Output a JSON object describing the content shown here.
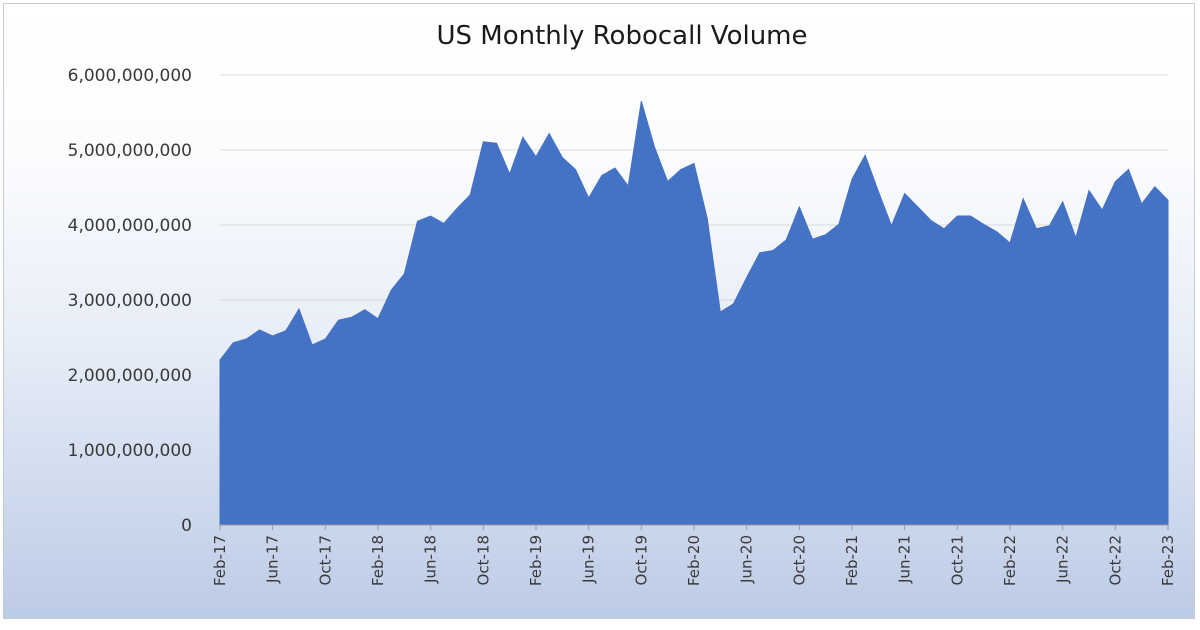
{
  "chart_data": {
    "type": "area",
    "title": "US Monthly Robocall Volume",
    "xlabel": "",
    "ylabel": "",
    "ylim": [
      0,
      6000000000
    ],
    "yticks": [
      0,
      1000000000,
      2000000000,
      3000000000,
      4000000000,
      5000000000,
      6000000000
    ],
    "ytick_labels": [
      "0",
      "1,000,000,000",
      "2,000,000,000",
      "3,000,000,000",
      "4,000,000,000",
      "5,000,000,000",
      "6,000,000,000"
    ],
    "xtick_labels": [
      "Feb-17",
      "Jun-17",
      "Oct-17",
      "Feb-18",
      "Jun-18",
      "Oct-18",
      "Feb-19",
      "Jun-19",
      "Oct-19",
      "Feb-20",
      "Jun-20",
      "Oct-20",
      "Feb-21",
      "Jun-21",
      "Oct-21",
      "Feb-22",
      "Jun-22",
      "Oct-22",
      "Feb-23"
    ],
    "tick_every_n_months": 4,
    "grid": true,
    "legend": "none",
    "color": "#4472C4",
    "start_month": "Feb-17",
    "values": [
      2200000000,
      2430000000,
      2480000000,
      2600000000,
      2520000000,
      2590000000,
      2880000000,
      2400000000,
      2480000000,
      2730000000,
      2770000000,
      2870000000,
      2750000000,
      3130000000,
      3350000000,
      4050000000,
      4120000000,
      4020000000,
      4220000000,
      4400000000,
      5110000000,
      5090000000,
      4680000000,
      5170000000,
      4910000000,
      5220000000,
      4900000000,
      4740000000,
      4360000000,
      4660000000,
      4760000000,
      4520000000,
      5650000000,
      5040000000,
      4580000000,
      4740000000,
      4820000000,
      4090000000,
      2840000000,
      2950000000,
      3300000000,
      3630000000,
      3660000000,
      3800000000,
      4240000000,
      3810000000,
      3870000000,
      4010000000,
      4610000000,
      4930000000,
      4450000000,
      3990000000,
      4420000000,
      4240000000,
      4060000000,
      3950000000,
      4120000000,
      4120000000,
      4010000000,
      3910000000,
      3760000000,
      4350000000,
      3950000000,
      3990000000,
      4310000000,
      3830000000,
      4460000000,
      4200000000,
      4580000000,
      4740000000,
      4280000000,
      4510000000,
      4330000000
    ]
  }
}
